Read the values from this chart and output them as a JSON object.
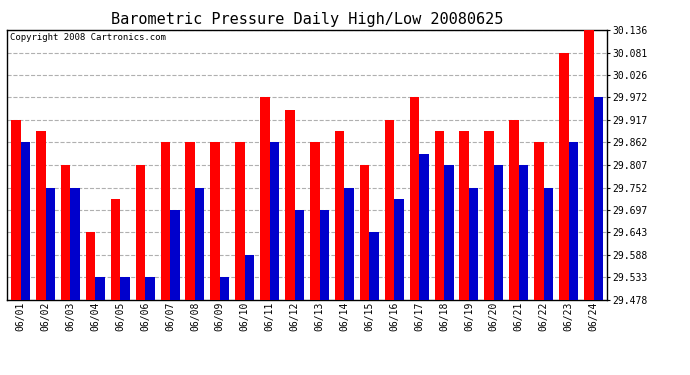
{
  "title": "Barometric Pressure Daily High/Low 20080625",
  "copyright": "Copyright 2008 Cartronics.com",
  "dates": [
    "06/01",
    "06/02",
    "06/03",
    "06/04",
    "06/05",
    "06/06",
    "06/07",
    "06/08",
    "06/09",
    "06/10",
    "06/11",
    "06/12",
    "06/13",
    "06/14",
    "06/15",
    "06/16",
    "06/17",
    "06/18",
    "06/19",
    "06/20",
    "06/21",
    "06/22",
    "06/23",
    "06/24"
  ],
  "highs": [
    29.917,
    29.89,
    29.807,
    29.643,
    29.725,
    29.807,
    29.862,
    29.862,
    29.862,
    29.862,
    29.972,
    29.94,
    29.862,
    29.89,
    29.807,
    29.917,
    29.972,
    29.89,
    29.89,
    29.89,
    29.917,
    29.862,
    30.081,
    30.136
  ],
  "lows": [
    29.862,
    29.752,
    29.752,
    29.533,
    29.533,
    29.533,
    29.697,
    29.752,
    29.533,
    29.588,
    29.862,
    29.697,
    29.697,
    29.752,
    29.643,
    29.725,
    29.835,
    29.807,
    29.752,
    29.807,
    29.807,
    29.752,
    29.862,
    29.972
  ],
  "ymin": 29.478,
  "ymax": 30.136,
  "yticks": [
    29.478,
    29.533,
    29.588,
    29.643,
    29.697,
    29.752,
    29.807,
    29.862,
    29.917,
    29.972,
    30.026,
    30.081,
    30.136
  ],
  "bar_width": 0.38,
  "high_color": "#ff0000",
  "low_color": "#0000cc",
  "bg_color": "#ffffff",
  "grid_color": "#b0b0b0",
  "title_fontsize": 11,
  "tick_fontsize": 7,
  "copyright_fontsize": 6.5
}
